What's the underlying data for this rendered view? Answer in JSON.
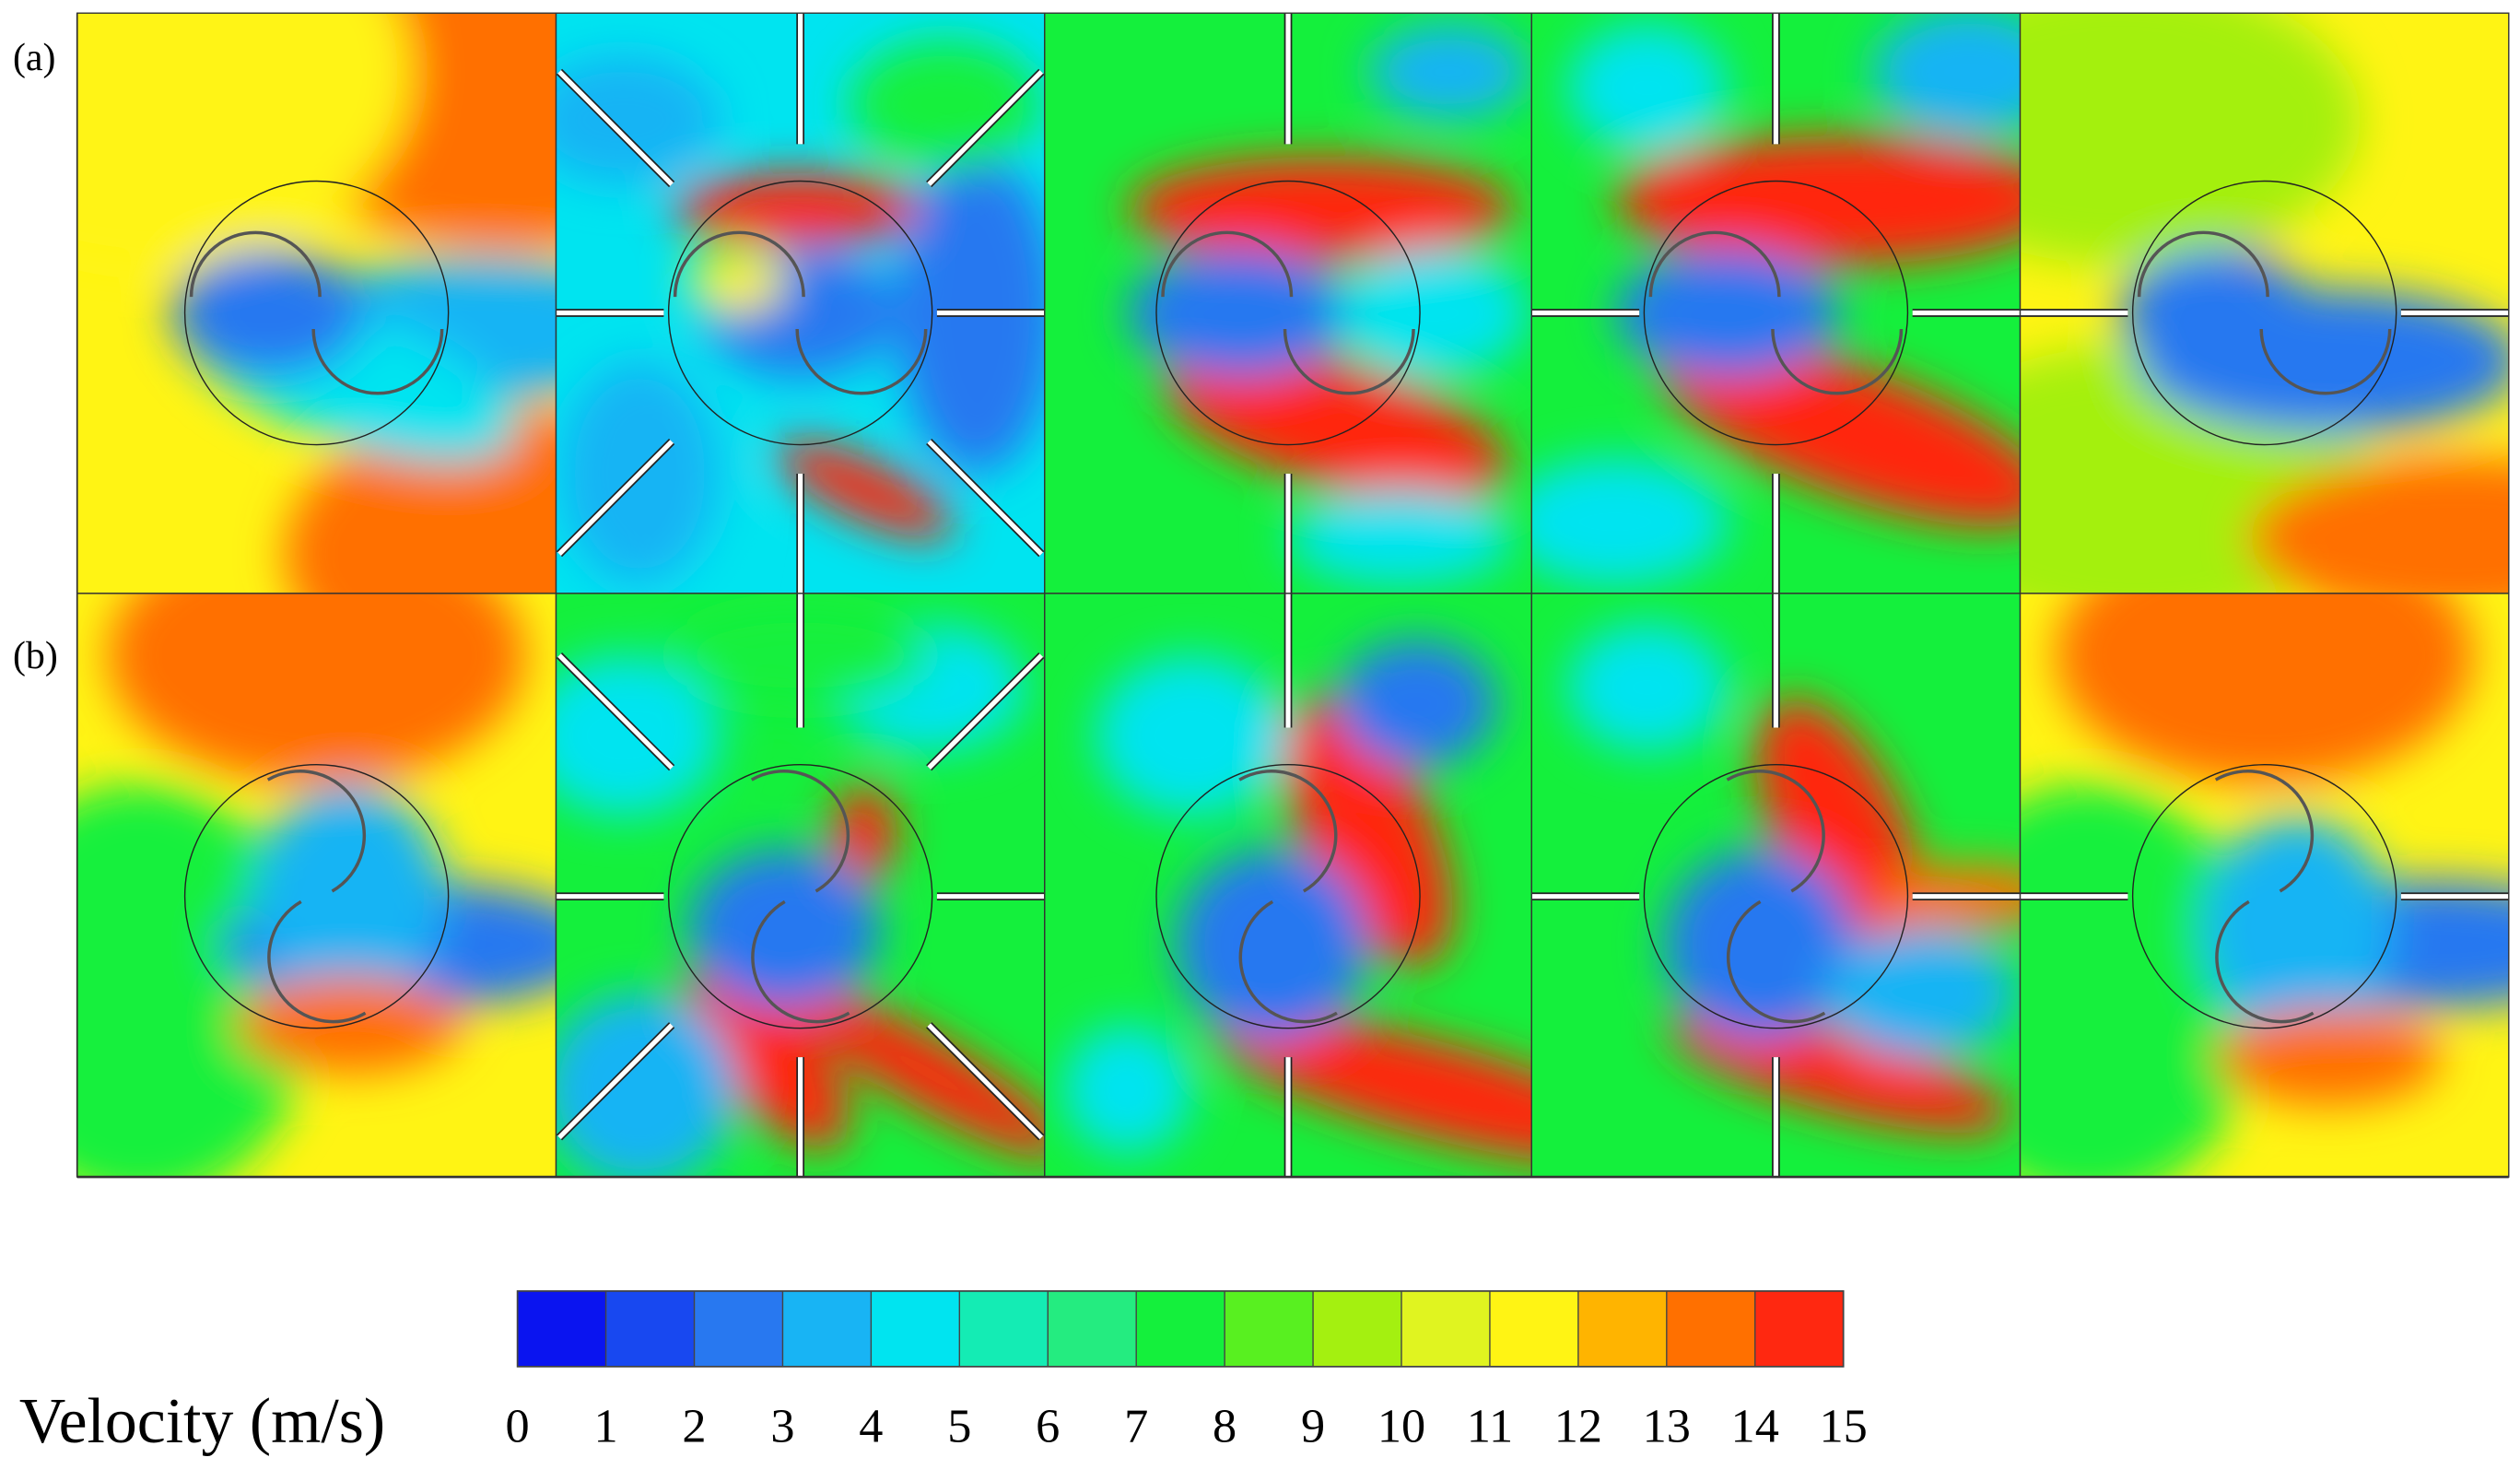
{
  "panel_labels": [
    "(a)",
    "(b)"
  ],
  "colorbar": {
    "title": "Velocity (m/s)",
    "range": [
      0,
      15
    ],
    "ticks": [
      0,
      1,
      2,
      3,
      4,
      5,
      6,
      7,
      8,
      9,
      10,
      11,
      12,
      13,
      14,
      15
    ]
  }
}
